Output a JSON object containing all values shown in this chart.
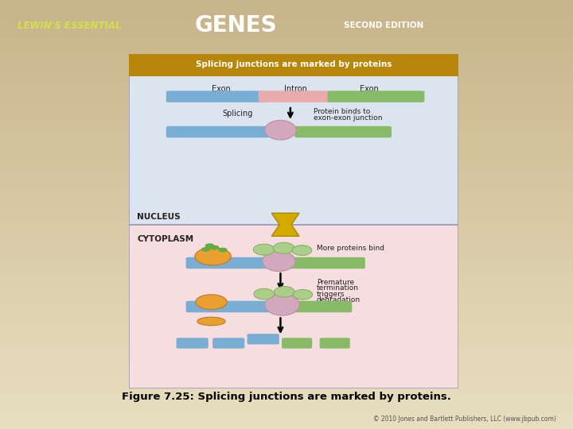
{
  "title": "Figure 7.25: Splicing junctions are marked by proteins.",
  "header_bg": "#5b9bbf",
  "diagram_title": "Splicing junctions are marked by proteins",
  "diagram_title_bg": "#b8860b",
  "nucleus_label": "NUCLEUS",
  "cytoplasm_label": "CYTOPLASM",
  "nucleus_bg": "#dce4ef",
  "cytoplasm_bg": "#f5dde0",
  "exon_color": "#7aadd4",
  "intron_color": "#e8aaaa",
  "exon2_color": "#88bb66",
  "protein_ball_color": "#d4a8bc",
  "green_ball_color": "#aacf88",
  "ribosome_color": "#e8a030",
  "ribosome_small_color": "#66aa44",
  "footer_text": "© 2010 Jones and Bartlett Publishers, LLC (www.jbpub.com)",
  "background_color_top": "#c8b88a",
  "background_color_bot": "#e8dfc0",
  "fig_width": 7.2,
  "fig_height": 5.4
}
